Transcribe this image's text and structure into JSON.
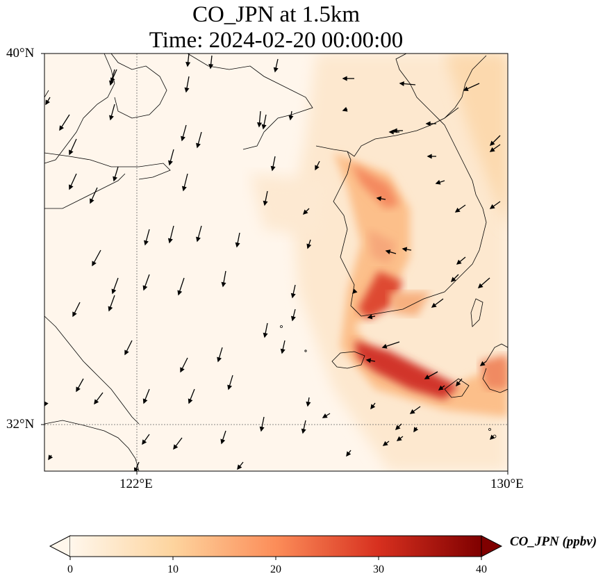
{
  "title_line1": "CO_JPN at 1.5km",
  "title_line2": "Time: 2024-02-20 00:00:00",
  "map": {
    "lon_range": [
      120,
      130
    ],
    "lat_range": [
      31,
      40
    ],
    "lon_ticks": [
      {
        "value": 122,
        "label": "122°E"
      },
      {
        "value": 130,
        "label": "130°E"
      }
    ],
    "lat_ticks": [
      {
        "value": 40,
        "label": "40°N"
      },
      {
        "value": 32,
        "label": "32°N"
      }
    ],
    "gridlines": "dotted"
  },
  "colorbar": {
    "label": "CO_JPN (ppbv)",
    "min": 0,
    "max": 40,
    "extend": "both",
    "colormap": "OrRd",
    "ticks": [
      "0",
      "10",
      "20",
      "30",
      "40"
    ]
  },
  "colors": {
    "low": "#fff7ec",
    "mid": "#fdd49e",
    "high": "#ef6548",
    "max": "#7f0000"
  }
}
